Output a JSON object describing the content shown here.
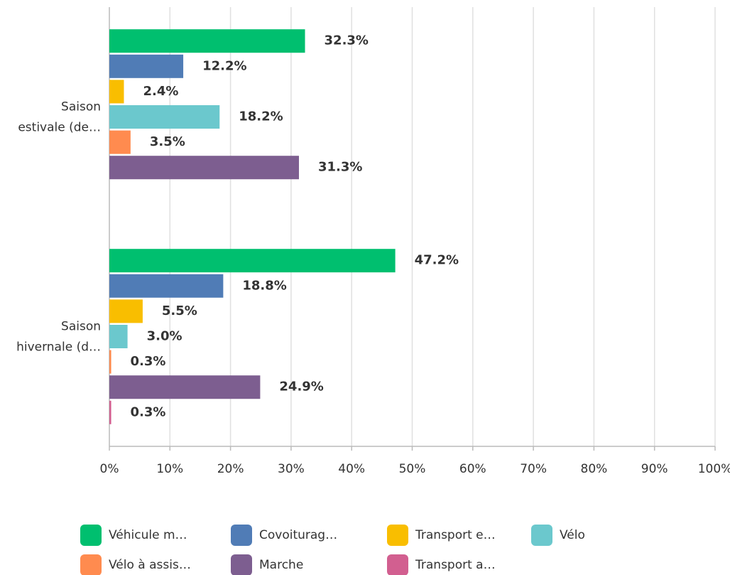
{
  "chart_data": {
    "type": "hbar",
    "categories": [
      "Saison estivale (de…",
      "Saison hivernale (d…"
    ],
    "series": [
      {
        "name": "Véhicule m…",
        "color": "#00bf6f",
        "values": [
          32.3,
          47.2
        ],
        "value_labels": [
          "32.3%",
          "47.2%"
        ]
      },
      {
        "name": "Covoiturag…",
        "color": "#507cb6",
        "values": [
          12.2,
          18.8
        ],
        "value_labels": [
          "12.2%",
          "18.8%"
        ]
      },
      {
        "name": "Transport e…",
        "color": "#f9be00",
        "values": [
          2.4,
          5.5
        ],
        "value_labels": [
          "2.4%",
          "5.5%"
        ]
      },
      {
        "name": "Vélo",
        "color": "#6bc8cd",
        "values": [
          18.2,
          3.0
        ],
        "value_labels": [
          "18.2%",
          "3.0%"
        ]
      },
      {
        "name": "Vélo à assis…",
        "color": "#ff8b4f",
        "values": [
          3.5,
          0.3
        ],
        "value_labels": [
          "3.5%",
          "0.3%"
        ]
      },
      {
        "name": "Marche",
        "color": "#7d5e90",
        "values": [
          31.3,
          24.9
        ],
        "value_labels": [
          "31.3%",
          "24.9%"
        ]
      },
      {
        "name": "Transport a…",
        "color": "#d25f90",
        "values": [
          null,
          0.3
        ],
        "value_labels": [
          null,
          "0.3%"
        ]
      }
    ],
    "xlim": [
      0,
      100
    ],
    "xticks": [
      {
        "value": 0,
        "label": "0%"
      },
      {
        "value": 10,
        "label": "10%"
      },
      {
        "value": 20,
        "label": "20%"
      },
      {
        "value": 30,
        "label": "30%"
      },
      {
        "value": 40,
        "label": "40%"
      },
      {
        "value": 50,
        "label": "50%"
      },
      {
        "value": 60,
        "label": "60%"
      },
      {
        "value": 70,
        "label": "70%"
      },
      {
        "value": 80,
        "label": "80%"
      },
      {
        "value": 90,
        "label": "90%"
      },
      {
        "value": 100,
        "label": "100%"
      }
    ],
    "grid": true,
    "legend": "bottom"
  }
}
